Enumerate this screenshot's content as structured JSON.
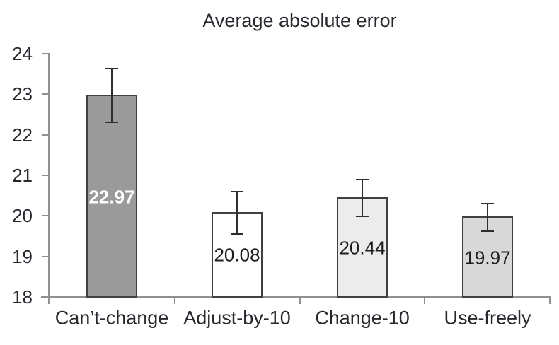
{
  "title": "Average absolute error",
  "chart_data": {
    "type": "bar",
    "title": "Average absolute error",
    "categories": [
      "Can’t-change",
      "Adjust-by-10",
      "Change-10",
      "Use-freely"
    ],
    "values": [
      22.97,
      20.08,
      20.44,
      19.97
    ],
    "value_labels": [
      "22.97",
      "20.08",
      "20.44",
      "19.97"
    ],
    "errors": [
      0.66,
      0.52,
      0.46,
      0.34
    ],
    "ylim": [
      18,
      24
    ],
    "yticks": [
      18,
      19,
      20,
      21,
      22,
      23,
      24
    ],
    "xlabel": "",
    "ylabel": "",
    "grid": false,
    "legend": null,
    "bar_fills": [
      "#9a9a9a",
      "#ffffff",
      "#ececec",
      "#d8d8d8"
    ],
    "bar_label_colors": [
      "#ffffff",
      "#1c1e22",
      "#1c1e22",
      "#1c1e22"
    ],
    "bar_label_bold": [
      true,
      false,
      false,
      false
    ],
    "bar_border_color": "#404040",
    "error_bar_color": "#2e2e2e",
    "axis_color": "#909090",
    "text_color": "#26282e"
  }
}
